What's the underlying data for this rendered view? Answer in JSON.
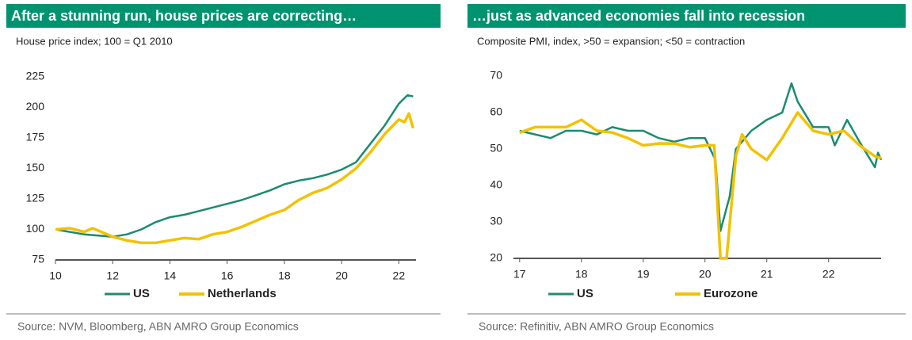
{
  "chart_data": [
    {
      "type": "line",
      "title": "After a stunning run, house prices are correcting…",
      "subtitle": "House price index; 100 = Q1 2010",
      "source": "Source: NVM, Bloomberg, ABN AMRO Group Economics",
      "xlim": [
        10,
        22.6
      ],
      "xticks": [
        10,
        12,
        14,
        16,
        18,
        20,
        22
      ],
      "ylim": [
        75,
        225
      ],
      "yticks": [
        75,
        100,
        125,
        150,
        175,
        200,
        225
      ],
      "series": [
        {
          "name": "US",
          "color": "#1b8b72",
          "x": [
            10,
            10.5,
            11,
            11.5,
            12,
            12.5,
            13,
            13.5,
            14,
            14.5,
            15,
            15.5,
            16,
            16.5,
            17,
            17.5,
            18,
            18.5,
            19,
            19.5,
            20,
            20.5,
            21,
            21.5,
            22,
            22.3,
            22.5
          ],
          "values": [
            100,
            98,
            96,
            95,
            94,
            96,
            100,
            106,
            110,
            112,
            115,
            118,
            121,
            124,
            128,
            132,
            137,
            140,
            142,
            145,
            149,
            155,
            170,
            185,
            203,
            210,
            209
          ]
        },
        {
          "name": "Netherlands",
          "color": "#f2c200",
          "x": [
            10,
            10.5,
            11,
            11.3,
            11.5,
            12,
            12.5,
            13,
            13.5,
            14,
            14.5,
            15,
            15.5,
            16,
            16.5,
            17,
            17.5,
            18,
            18.5,
            19,
            19.5,
            20,
            20.5,
            21,
            21.5,
            22,
            22.2,
            22.35,
            22.5
          ],
          "values": [
            100,
            101,
            98,
            101,
            99,
            94,
            91,
            89,
            89,
            91,
            93,
            92,
            96,
            98,
            102,
            107,
            112,
            116,
            124,
            130,
            134,
            141,
            150,
            163,
            178,
            190,
            188,
            195,
            183
          ]
        }
      ]
    },
    {
      "type": "line",
      "title": "…just as advanced economies fall into recession",
      "subtitle": "Composite PMI, index, >50 = expansion; <50 = contraction",
      "source": "Source: Refinitiv, ABN AMRO Group Economics",
      "xlim": [
        16.9,
        22.85
      ],
      "xticks": [
        17,
        18,
        19,
        20,
        21,
        22
      ],
      "ylim": [
        20,
        70
      ],
      "yticks": [
        20,
        30,
        40,
        50,
        60,
        70
      ],
      "series": [
        {
          "name": "US",
          "color": "#1b8b72",
          "x": [
            17,
            17.25,
            17.5,
            17.75,
            18,
            18.25,
            18.5,
            18.75,
            19,
            19.25,
            19.5,
            19.75,
            20,
            20.17,
            20.25,
            20.4,
            20.5,
            20.75,
            21,
            21.25,
            21.4,
            21.5,
            21.75,
            22,
            22.1,
            22.3,
            22.5,
            22.75,
            22.8,
            22.85
          ],
          "values": [
            55,
            54,
            53,
            55,
            55,
            54,
            56,
            55,
            55,
            53,
            52,
            53,
            53,
            47,
            27.5,
            37,
            50,
            55,
            58,
            60,
            68,
            63,
            56,
            56,
            51,
            58,
            52,
            45,
            49,
            47
          ]
        },
        {
          "name": "Eurozone",
          "color": "#f2c200",
          "x": [
            17,
            17.25,
            17.5,
            17.75,
            18,
            18.25,
            18.5,
            18.75,
            19,
            19.25,
            19.5,
            19.75,
            20,
            20.15,
            20.25,
            20.35,
            20.5,
            20.6,
            20.75,
            21,
            21.25,
            21.5,
            21.75,
            22,
            22.25,
            22.5,
            22.75,
            22.85
          ],
          "values": [
            54.5,
            56,
            56,
            56,
            58,
            55,
            54.5,
            53,
            51,
            51.5,
            51.5,
            50.5,
            51,
            51,
            20,
            20,
            48,
            54,
            50,
            47,
            53,
            60,
            55,
            54,
            55,
            51,
            48,
            47.5
          ]
        }
      ]
    }
  ]
}
